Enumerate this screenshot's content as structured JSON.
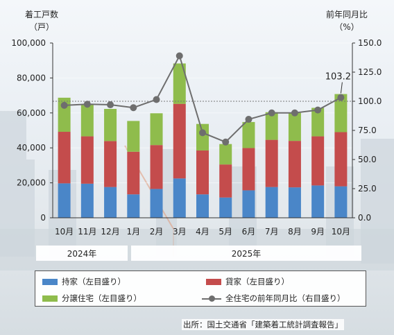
{
  "left_axis_title": [
    "着工戸数",
    "（戸）"
  ],
  "right_axis_title": [
    "前年同月比",
    "（%）"
  ],
  "year_labels": [
    "2024年",
    "2025年"
  ],
  "legend": {
    "owned": "持家（左目盛り）",
    "rental": "貸家（左目盛り）",
    "condo": "分譲住宅（左目盛り）",
    "yoy": "全住宅の前年同月比（右目盛り）"
  },
  "source": "出所：国土交通省「建築着工統計調査報告」",
  "colors": {
    "owned": "#4a86c8",
    "rental": "#c44c4c",
    "condo": "#8fbc4c",
    "yoy": "#6e6e6e"
  },
  "chart_data": {
    "type": "bar",
    "stacked": true,
    "categories": [
      "10月",
      "11月",
      "12月",
      "1月",
      "2月",
      "3月",
      "4月",
      "5月",
      "6月",
      "7月",
      "8月",
      "9月",
      "10月"
    ],
    "left_ticks": [
      "0",
      "20,000",
      "40,000",
      "60,000",
      "80,000",
      "100,000"
    ],
    "right_ticks": [
      "0.0",
      "25.0",
      "50.0",
      "75.0",
      "100.0",
      "125.0",
      "150.0"
    ],
    "ylim_left": [
      0,
      100000
    ],
    "ylim_right": [
      0,
      150
    ],
    "reference_line_right": 100,
    "series": [
      {
        "name": "持家（左目盛り）",
        "values": [
          19700,
          19500,
          17600,
          13400,
          16500,
          22500,
          13400,
          11600,
          15700,
          17600,
          17400,
          18500,
          18000
        ]
      },
      {
        "name": "貸家（左目盛り）",
        "values": [
          29500,
          27100,
          26300,
          24400,
          25100,
          42700,
          25100,
          18900,
          24200,
          27000,
          26600,
          28100,
          31000
        ]
      },
      {
        "name": "分譲住宅（左目盛り）",
        "values": [
          19500,
          18100,
          18400,
          17600,
          18200,
          23100,
          15200,
          11700,
          14900,
          15800,
          16000,
          16300,
          21800
        ]
      }
    ],
    "line_series": {
      "name": "全住宅の前年同月比（右目盛り）",
      "values": [
        96.5,
        97.5,
        97,
        94.5,
        101.5,
        139,
        73,
        65,
        84.5,
        90,
        90,
        92.5,
        103.2
      ],
      "annotation": "103.2"
    }
  }
}
